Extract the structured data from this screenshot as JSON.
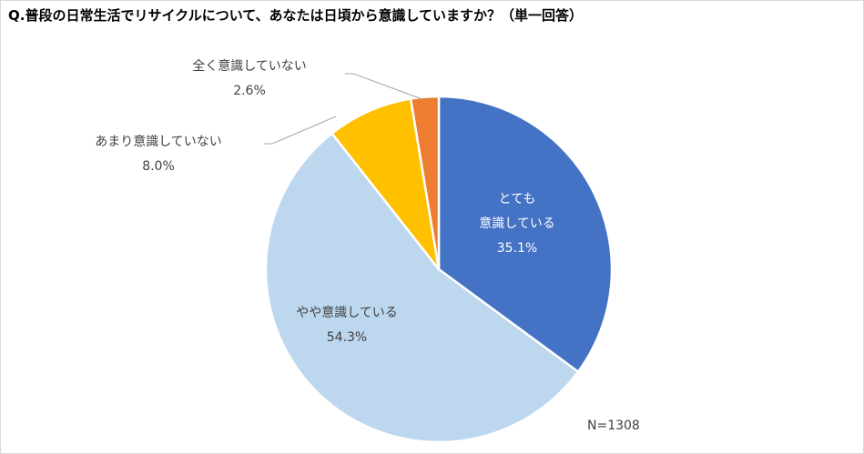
{
  "chart_data": {
    "type": "pie",
    "title": "Q.普段の日常生活でリサイクルについて、あなたは日頃から意識していますか？（単一回答）",
    "slices": [
      {
        "label_lines": [
          "とても",
          "意識している"
        ],
        "value": 35.1,
        "value_label": "35.1%",
        "color": "#4472c4",
        "label_color": "#ffffff"
      },
      {
        "label_lines": [
          "やや意識している"
        ],
        "value": 54.3,
        "value_label": "54.3%",
        "color": "#bdd7ee",
        "label_color": "#404040"
      },
      {
        "label_lines": [
          "あまり意識していない"
        ],
        "value": 8.0,
        "value_label": "8.0%",
        "color": "#ffc000",
        "label_color": "#404040"
      },
      {
        "label_lines": [
          "全く意識していない"
        ],
        "value": 2.6,
        "value_label": "2.6%",
        "color": "#ed7d31",
        "label_color": "#404040"
      }
    ],
    "start": "12 o'clock",
    "direction": "clockwise",
    "note": "N=1308"
  }
}
